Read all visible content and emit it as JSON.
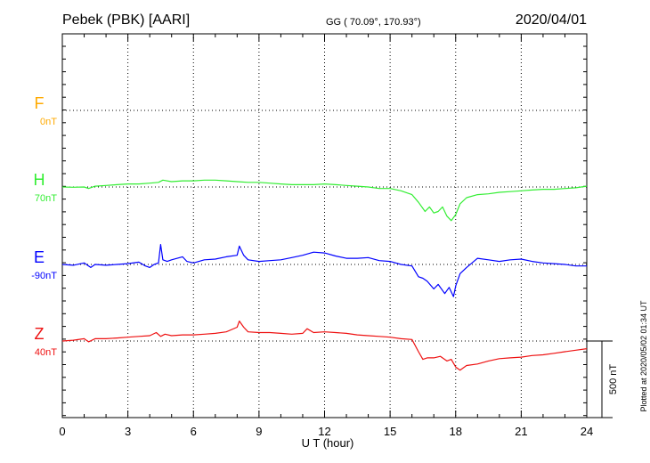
{
  "header": {
    "station": "Pebek (PBK)  [AARI]",
    "coords": "GG ( 70.09°, 170.93°)",
    "date": "2020/04/01"
  },
  "side_note": "Plotted at 2020/05/02 01:34 UT",
  "scale_bar": {
    "label": "500 nT",
    "value_nT": 500
  },
  "chart_data": {
    "type": "line",
    "xlabel": "U T (hour)",
    "xlim": [
      0,
      24
    ],
    "xticks": [
      0,
      3,
      6,
      9,
      12,
      15,
      18,
      21,
      24
    ],
    "grid": true,
    "y_units": "nT",
    "series": [
      {
        "name": "F",
        "baseline_label": "0nT",
        "color": "#ffaa00",
        "x": [],
        "y": []
      },
      {
        "name": "H",
        "baseline_label": "70nT",
        "color": "#33ee33",
        "x": [
          0,
          0.5,
          1,
          1.2,
          1.5,
          2,
          2.5,
          3,
          3.5,
          4,
          4.4,
          4.6,
          5,
          5.5,
          6,
          6.5,
          7,
          7.5,
          8,
          8.5,
          9,
          9.5,
          10,
          10.5,
          11,
          11.5,
          12,
          12.5,
          13,
          13.5,
          14,
          14.5,
          15,
          15.5,
          16,
          16.3,
          16.6,
          16.8,
          17,
          17.2,
          17.4,
          17.6,
          17.8,
          18,
          18.2,
          18.5,
          19,
          19.5,
          20,
          20.5,
          21,
          21.5,
          22,
          22.5,
          23,
          23.5,
          24
        ],
        "y": [
          70,
          68,
          70,
          60,
          75,
          80,
          85,
          90,
          90,
          95,
          100,
          115,
          105,
          110,
          110,
          115,
          115,
          110,
          105,
          100,
          100,
          95,
          90,
          85,
          85,
          85,
          90,
          85,
          80,
          75,
          70,
          60,
          60,
          45,
          20,
          -30,
          -90,
          -60,
          -100,
          -90,
          -60,
          -120,
          -150,
          -110,
          -40,
          0,
          20,
          25,
          35,
          40,
          45,
          50,
          55,
          55,
          60,
          65,
          75
        ]
      },
      {
        "name": "E",
        "baseline_label": "-90nT",
        "color": "#0000ff",
        "x": [
          0,
          0.5,
          1,
          1.3,
          1.5,
          2,
          2.5,
          3,
          3.5,
          3.8,
          4,
          4.2,
          4.4,
          4.5,
          4.6,
          4.8,
          5,
          5.5,
          5.7,
          6,
          6.5,
          7,
          7.5,
          8,
          8.1,
          8.3,
          8.5,
          9,
          9.5,
          10,
          10.5,
          11,
          11.5,
          12,
          12.5,
          13,
          13.5,
          14,
          14.5,
          15,
          15.5,
          16,
          16.3,
          16.5,
          16.7,
          17,
          17.2,
          17.5,
          17.7,
          17.9,
          18,
          18.2,
          18.5,
          19,
          19.5,
          20,
          20.5,
          21,
          21.5,
          22,
          22.5,
          23,
          23.5,
          24
        ],
        "y": [
          -90,
          -95,
          -80,
          -110,
          -90,
          -95,
          -90,
          -85,
          -75,
          -100,
          -110,
          -90,
          -80,
          40,
          -60,
          -70,
          -60,
          -40,
          -70,
          -80,
          -60,
          -55,
          -40,
          -30,
          30,
          -30,
          -60,
          -70,
          -65,
          -60,
          -45,
          -30,
          -10,
          -15,
          -35,
          -50,
          -50,
          -45,
          -65,
          -70,
          -90,
          -100,
          -170,
          -180,
          -200,
          -250,
          -220,
          -280,
          -240,
          -300,
          -230,
          -150,
          -110,
          -50,
          -60,
          -70,
          -60,
          -55,
          -70,
          -80,
          -85,
          -90,
          -100,
          -100
        ]
      },
      {
        "name": "Z",
        "baseline_label": "40nT",
        "color": "#ee1111",
        "x": [
          0,
          0.5,
          1,
          1.2,
          1.5,
          2,
          2.5,
          3,
          3.5,
          4,
          4.3,
          4.5,
          4.7,
          5,
          5.5,
          6,
          6.5,
          7,
          7.5,
          8,
          8.1,
          8.3,
          8.5,
          9,
          9.5,
          10,
          10.5,
          11,
          11.2,
          11.5,
          12,
          12.5,
          13,
          13.5,
          14,
          14.5,
          15,
          15.5,
          16,
          16.3,
          16.5,
          16.7,
          17,
          17.3,
          17.6,
          17.8,
          18,
          18.2,
          18.5,
          19,
          19.5,
          20,
          20.5,
          21,
          21.5,
          22,
          22.5,
          23,
          23.5,
          24
        ],
        "y": [
          40,
          45,
          55,
          35,
          55,
          55,
          60,
          65,
          70,
          75,
          95,
          70,
          85,
          75,
          80,
          80,
          85,
          90,
          100,
          130,
          170,
          130,
          100,
          95,
          95,
          90,
          85,
          90,
          120,
          95,
          100,
          95,
          90,
          80,
          75,
          70,
          65,
          55,
          50,
          -30,
          -80,
          -70,
          -70,
          -60,
          -90,
          -80,
          -130,
          -150,
          -120,
          -110,
          -90,
          -75,
          -70,
          -65,
          -55,
          -50,
          -40,
          -30,
          -20,
          -10
        ]
      }
    ]
  }
}
